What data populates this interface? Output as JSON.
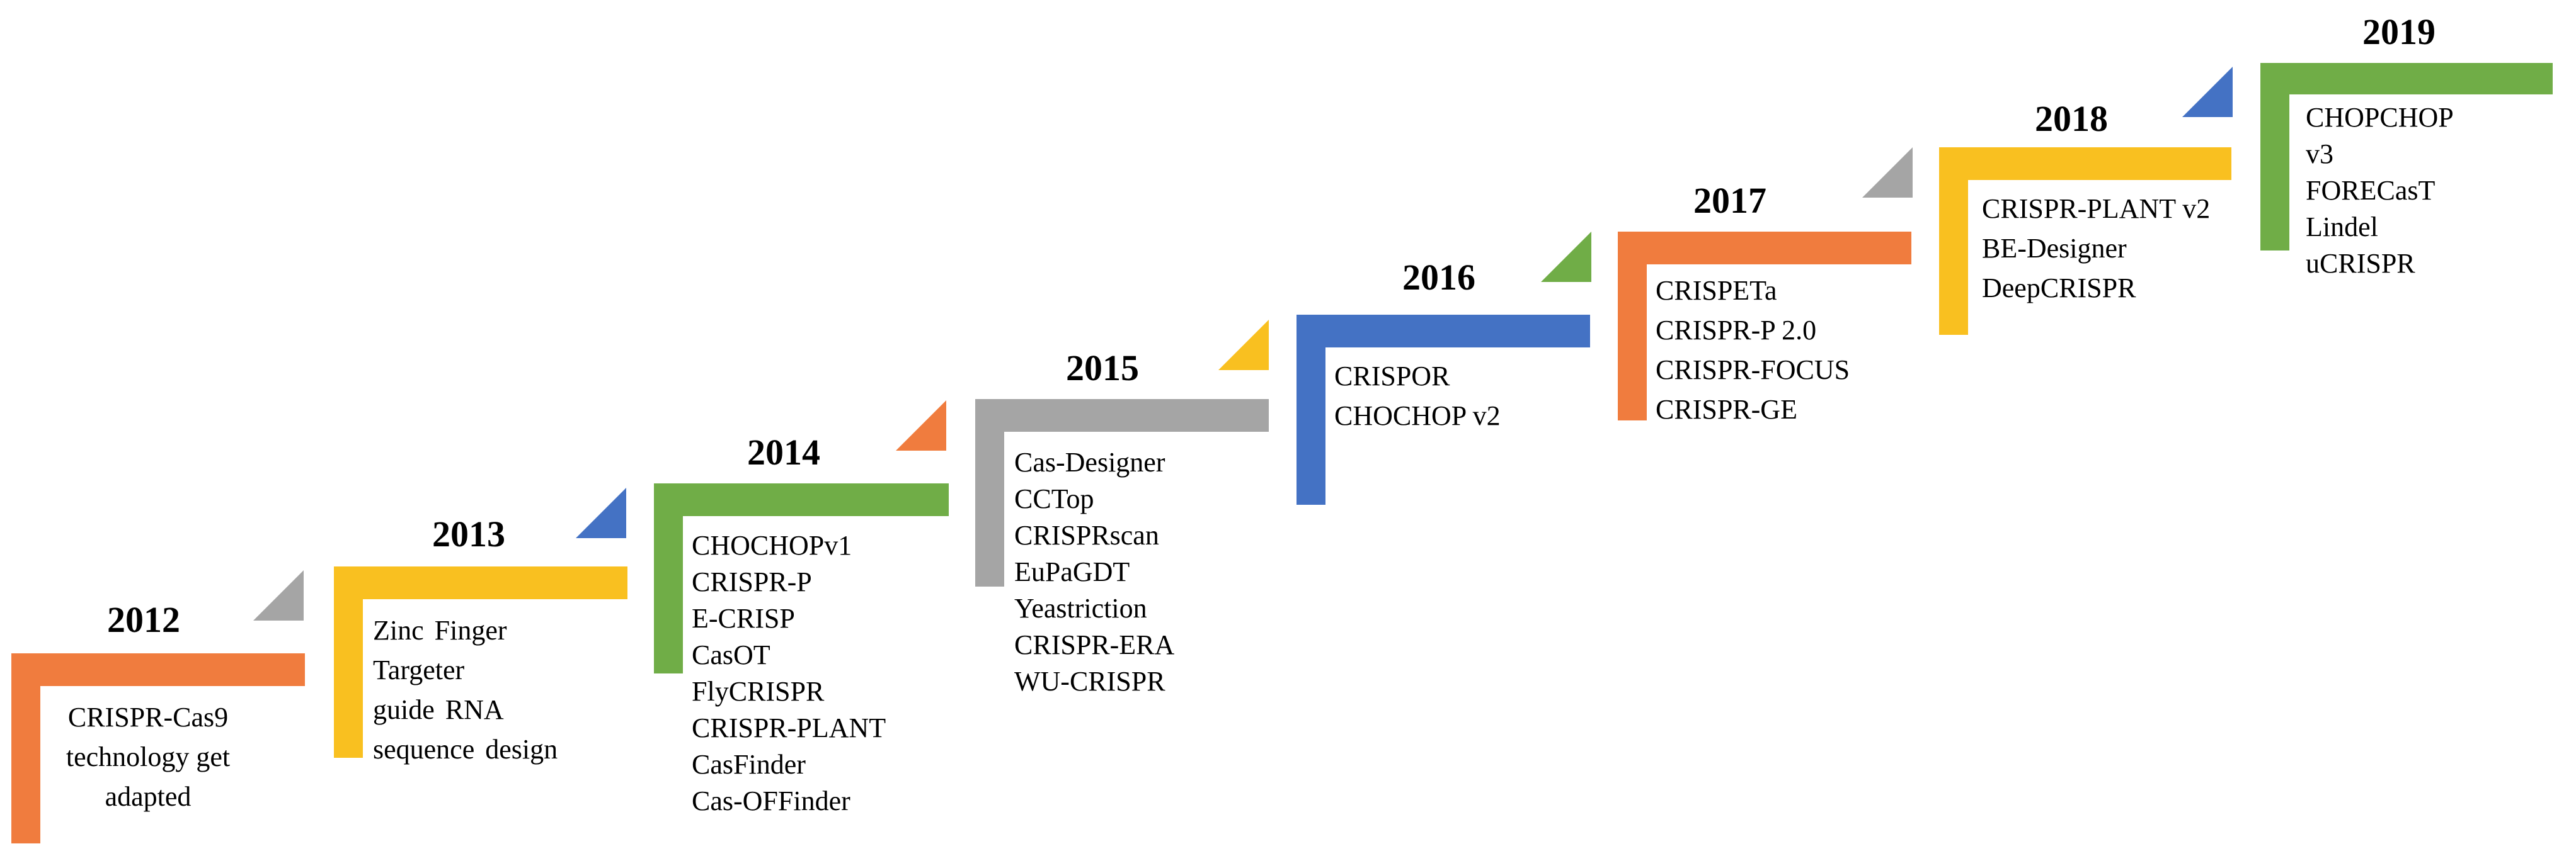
{
  "colors": {
    "orange": "#F07C3E",
    "yellow": "#F9C020",
    "blue": "#4472C4",
    "green": "#70AD47",
    "gray": "#A5A5A5"
  },
  "steps": [
    {
      "year": "2012",
      "items": [
        "CRISPR-Cas9",
        "technology get",
        "adapted"
      ],
      "bar_color": "orange",
      "marker_color": "gray"
    },
    {
      "year": "2013",
      "items": [
        "Zinc Finger",
        "Targeter",
        "guide RNA",
        "sequence design"
      ],
      "bar_color": "yellow",
      "marker_color": "blue"
    },
    {
      "year": "2014",
      "items": [
        "CHOCHOPv1",
        "CRISPR-P",
        "E-CRISP",
        "CasOT",
        "FlyCRISPR",
        "CRISPR-PLANT",
        "CasFinder",
        "Cas-OFFinder"
      ],
      "bar_color": "green",
      "marker_color": "orange"
    },
    {
      "year": "2015",
      "items": [
        "Cas-Designer",
        "CCTop",
        "CRISPRscan",
        "EuPaGDT",
        "Yeastriction",
        "CRISPR-ERA",
        "WU-CRISPR"
      ],
      "bar_color": "gray",
      "marker_color": "yellow"
    },
    {
      "year": "2016",
      "items": [
        "CRISPOR",
        "CHOCHOP v2"
      ],
      "bar_color": "blue",
      "marker_color": "green"
    },
    {
      "year": "2017",
      "items": [
        "CRISPETa",
        "CRISPR-P 2.0",
        "CRISPR-FOCUS",
        "CRISPR-GE"
      ],
      "bar_color": "orange",
      "marker_color": "gray"
    },
    {
      "year": "2018",
      "items": [
        "CRISPR-PLANT v2",
        "BE-Designer",
        "DeepCRISPR"
      ],
      "bar_color": "yellow",
      "marker_color": "blue"
    },
    {
      "year": "2019",
      "items": [
        "CHOPCHOP",
        "v3",
        "FORECasT",
        "Lindel",
        "uCRISPR"
      ],
      "bar_color": "green",
      "marker_color": null
    }
  ]
}
